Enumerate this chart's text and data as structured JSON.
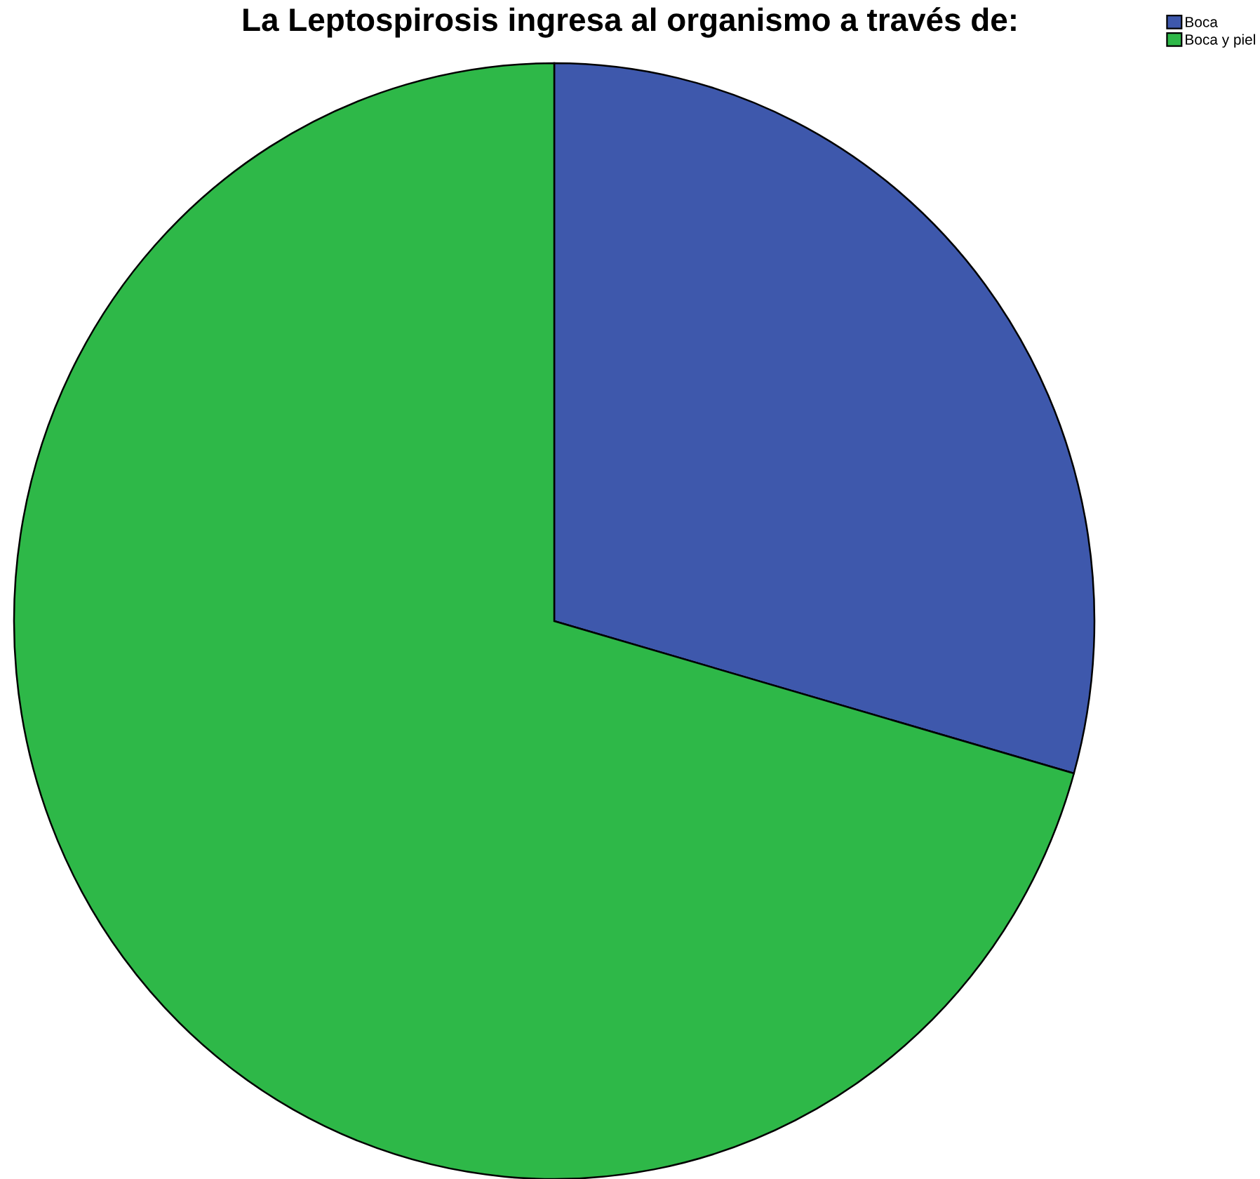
{
  "chart_data": {
    "type": "pie",
    "title": "La Leptospirosis ingresa al organismo a través de:",
    "categories": [
      "Boca",
      "Boca y piel"
    ],
    "values": [
      29.4,
      70.6
    ],
    "colors": [
      "#3e58ac",
      "#2eb848"
    ],
    "legend": "top right"
  }
}
